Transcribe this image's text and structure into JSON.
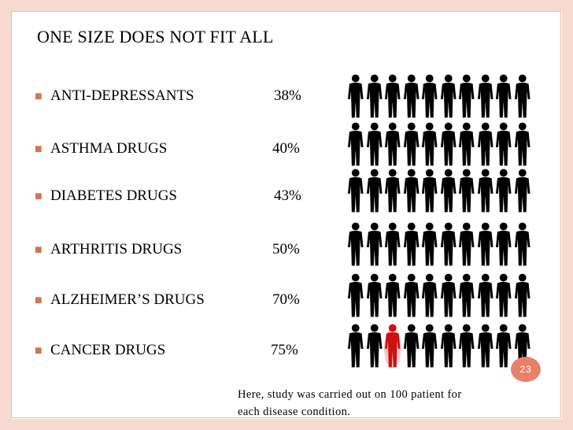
{
  "slide": {
    "title": "ONE SIZE DOES NOT FIT ALL",
    "page_number": "23",
    "note_line1": "Here, study was carried out on 100 patient for",
    "note_line2": "each disease condition.",
    "bullet_icon": "square-bullet-icon",
    "colors": {
      "accent": "#e8806a",
      "border": "#f6d9cf",
      "highlight": "#cc1111"
    }
  },
  "rows": [
    {
      "label": "ANTI-DEPRESSANTS",
      "percent": "38%"
    },
    {
      "label": "ASTHMA DRUGS",
      "percent": "40%"
    },
    {
      "label": "DIABETES DRUGS",
      "percent": "43%"
    },
    {
      "label": "ARTHRITIS DRUGS",
      "percent": "50%"
    },
    {
      "label": "ALZHEIMER’S DRUGS",
      "percent": "70%"
    },
    {
      "label": "CANCER DRUGS",
      "percent": "75%"
    }
  ],
  "people_icon": "person-silhouette-icon",
  "highlighted_person": {
    "row": 5,
    "index": 2
  }
}
